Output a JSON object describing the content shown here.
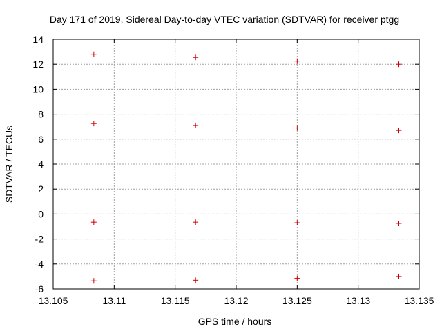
{
  "chart_data": {
    "type": "scatter",
    "title": "Day 171 of 2019, Sidereal Day-to-day VTEC variation (SDTVAR) for receiver ptgg",
    "xlabel": "GPS time / hours",
    "ylabel": "SDTVAR / TECUs",
    "xlim": [
      13.105,
      13.135
    ],
    "ylim": [
      -6,
      14
    ],
    "xticks": [
      13.105,
      13.11,
      13.115,
      13.12,
      13.125,
      13.13,
      13.135
    ],
    "xtick_labels": [
      "13.105",
      "13.11",
      "13.115",
      "13.12",
      "13.125",
      "13.13",
      "13.135"
    ],
    "yticks": [
      -6,
      -4,
      -2,
      0,
      2,
      4,
      6,
      8,
      10,
      12,
      14
    ],
    "ytick_labels": [
      "-6",
      "-4",
      "-2",
      "0",
      "2",
      "4",
      "6",
      "8",
      "10",
      "12",
      "14"
    ],
    "grid": true,
    "marker": "+",
    "colors": {
      "points": "#cc0000",
      "axes": "#000000",
      "grid": "#a0a0a0"
    },
    "series": [
      {
        "points": [
          {
            "x": 13.10833,
            "y": 12.8
          },
          {
            "x": 13.10833,
            "y": 7.25
          },
          {
            "x": 13.10833,
            "y": -0.65
          },
          {
            "x": 13.10833,
            "y": -5.35
          },
          {
            "x": 13.11667,
            "y": 12.55
          },
          {
            "x": 13.11667,
            "y": 7.1
          },
          {
            "x": 13.11667,
            "y": -0.65
          },
          {
            "x": 13.11667,
            "y": -5.3
          },
          {
            "x": 13.125,
            "y": 12.25
          },
          {
            "x": 13.125,
            "y": 6.9
          },
          {
            "x": 13.125,
            "y": -0.7
          },
          {
            "x": 13.125,
            "y": -5.15
          },
          {
            "x": 13.13333,
            "y": 12.0
          },
          {
            "x": 13.13333,
            "y": 6.7
          },
          {
            "x": 13.13333,
            "y": -0.75
          },
          {
            "x": 13.13333,
            "y": -5.0
          }
        ]
      }
    ]
  }
}
